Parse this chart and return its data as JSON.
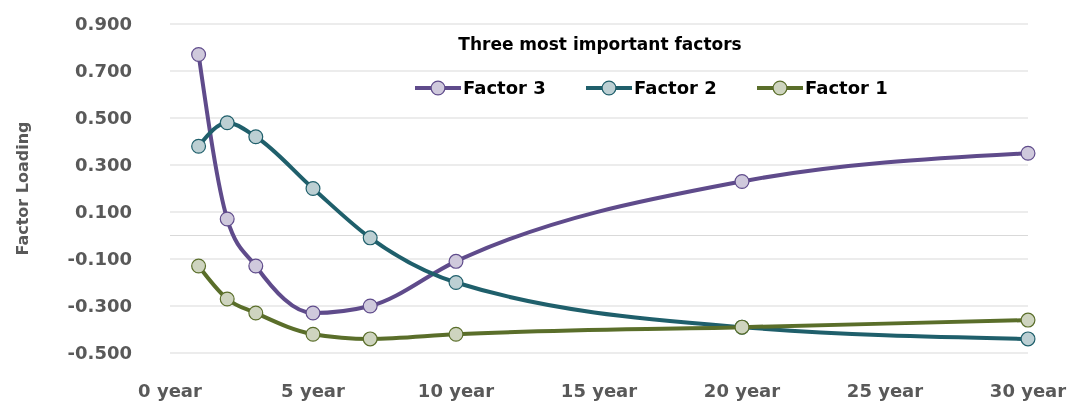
{
  "chart_data": {
    "type": "line",
    "ylabel": "Factor Loading",
    "legend_title": "Three most important factors",
    "legend": "top right",
    "grid": "y",
    "marker": "circle",
    "line_style": "solid",
    "xlim": [
      0,
      30
    ],
    "xticks": [
      {
        "value": 0,
        "label": "0 year"
      },
      {
        "value": 5,
        "label": "5 year"
      },
      {
        "value": 10,
        "label": "10 year"
      },
      {
        "value": 15,
        "label": "15 year"
      },
      {
        "value": 20,
        "label": "20 year"
      },
      {
        "value": 25,
        "label": "25 year"
      },
      {
        "value": 30,
        "label": "30 year"
      }
    ],
    "ylim": [
      -0.5,
      0.9
    ],
    "yticks": [
      {
        "value": 0.9,
        "label": "0.900"
      },
      {
        "value": 0.7,
        "label": "0.700"
      },
      {
        "value": 0.5,
        "label": "0.500"
      },
      {
        "value": 0.3,
        "label": "0.300"
      },
      {
        "value": 0.1,
        "label": "0.100"
      },
      {
        "value": -0.1,
        "label": "-0.100"
      },
      {
        "value": -0.3,
        "label": "-0.300"
      },
      {
        "value": -0.5,
        "label": "-0.500"
      }
    ],
    "ref_lines": [
      {
        "axis": "y",
        "value": 0,
        "color": "#d9d9d9"
      }
    ],
    "x": [
      1,
      2,
      3,
      5,
      7,
      10,
      20,
      30
    ],
    "series": [
      {
        "name": "Factor 3",
        "color": "#5f4b8b",
        "values": [
          0.77,
          0.07,
          -0.13,
          -0.33,
          -0.3,
          -0.11,
          0.23,
          0.35
        ]
      },
      {
        "name": "Factor 2",
        "color": "#1f5f6b",
        "values": [
          0.38,
          0.48,
          0.42,
          0.2,
          -0.01,
          -0.2,
          -0.39,
          -0.44
        ]
      },
      {
        "name": "Factor 1",
        "color": "#5a6e2a",
        "values": [
          -0.13,
          -0.27,
          -0.33,
          -0.42,
          -0.44,
          -0.42,
          -0.39,
          -0.36
        ]
      }
    ]
  }
}
